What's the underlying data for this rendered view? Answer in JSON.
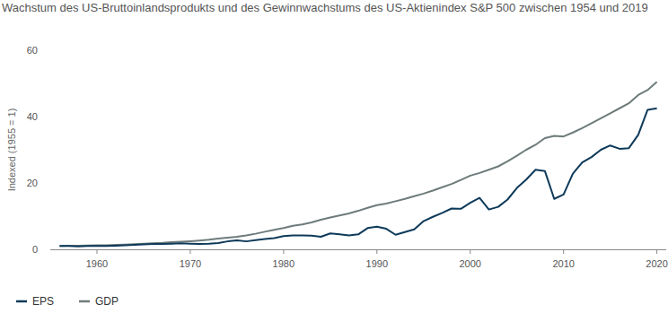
{
  "chart_data": {
    "type": "line",
    "title": "Wachstum des US-Bruttoinlandsprodukts und des Gewinnwachstums des US-Aktienindex S&P 500 zwischen 1954 und 2019",
    "y_label": "Indexed (1955 = 1)",
    "x": [
      1956,
      1957,
      1958,
      1959,
      1960,
      1961,
      1962,
      1963,
      1964,
      1965,
      1966,
      1967,
      1968,
      1969,
      1970,
      1971,
      1972,
      1973,
      1974,
      1975,
      1976,
      1977,
      1978,
      1979,
      1980,
      1981,
      1982,
      1983,
      1984,
      1985,
      1986,
      1987,
      1988,
      1989,
      1990,
      1991,
      1992,
      1993,
      1994,
      1995,
      1996,
      1997,
      1998,
      1999,
      2000,
      2001,
      2002,
      2003,
      2004,
      2005,
      2006,
      2007,
      2008,
      2009,
      2010,
      2011,
      2012,
      2013,
      2014,
      2015,
      2016,
      2017,
      2018,
      2019,
      2020
    ],
    "series": [
      {
        "name": "EPS",
        "color": "#0e3a5a",
        "values": [
          1.0,
          1.0,
          0.9,
          1.0,
          1.0,
          1.0,
          1.1,
          1.2,
          1.35,
          1.5,
          1.6,
          1.6,
          1.7,
          1.8,
          1.7,
          1.6,
          1.7,
          1.9,
          2.4,
          2.7,
          2.4,
          2.8,
          3.1,
          3.4,
          4.0,
          4.2,
          4.2,
          4.1,
          3.8,
          4.8,
          4.5,
          4.2,
          4.5,
          6.4,
          6.8,
          6.2,
          4.4,
          5.2,
          6.0,
          8.5,
          9.8,
          11.0,
          12.3,
          12.2,
          14.0,
          15.5,
          12.0,
          12.8,
          15.0,
          18.5,
          21.0,
          24.0,
          23.6,
          15.2,
          16.5,
          22.8,
          26.2,
          27.8,
          30.0,
          31.3,
          30.3,
          30.5,
          34.5,
          42.0,
          42.5
        ]
      },
      {
        "name": "GDP",
        "color": "#6e7b7b",
        "values": [
          1.0,
          1.05,
          1.05,
          1.15,
          1.2,
          1.25,
          1.35,
          1.45,
          1.55,
          1.7,
          1.85,
          1.95,
          2.15,
          2.3,
          2.45,
          2.65,
          2.9,
          3.25,
          3.5,
          3.8,
          4.2,
          4.7,
          5.3,
          5.9,
          6.4,
          7.1,
          7.5,
          8.1,
          8.9,
          9.6,
          10.2,
          10.8,
          11.6,
          12.5,
          13.3,
          13.8,
          14.5,
          15.2,
          16.0,
          16.8,
          17.7,
          18.7,
          19.7,
          20.9,
          22.2,
          23.0,
          24.0,
          25.0,
          26.5,
          28.2,
          30.0,
          31.5,
          33.5,
          34.2,
          34.0,
          35.2,
          36.5,
          38.0,
          39.5,
          41.0,
          42.5,
          44.0,
          46.5,
          48.0,
          50.5
        ]
      }
    ],
    "xlim": [
      1955,
      2021
    ],
    "xticks": [
      1960,
      1970,
      1980,
      1990,
      2000,
      2010,
      2020
    ],
    "ylim": [
      0,
      60
    ],
    "yticks": [
      0,
      20,
      40,
      60
    ],
    "grid": false,
    "legend": "bottom-left"
  }
}
